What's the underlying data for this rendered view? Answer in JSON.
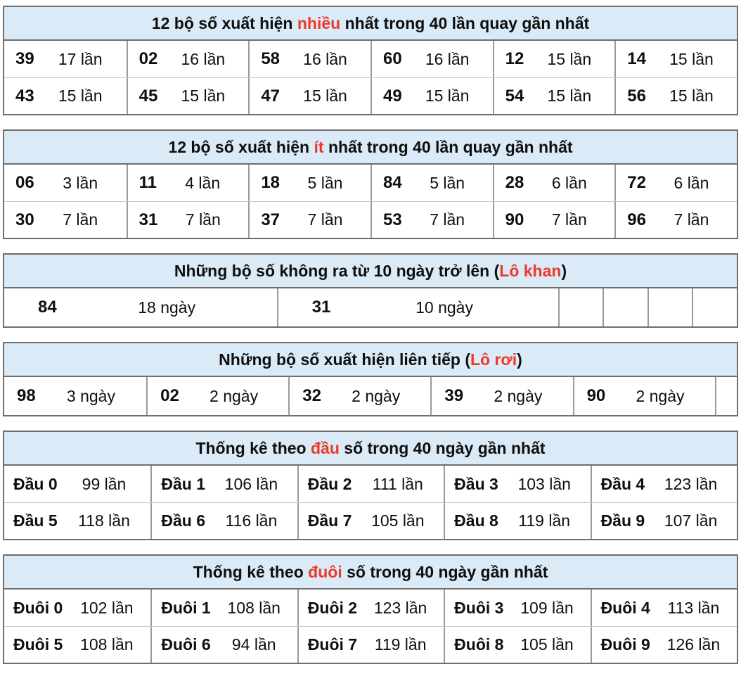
{
  "colors": {
    "header_background": "#daeaf6",
    "highlight_red": "#ee392b",
    "text_black": "#0f0f0f",
    "border_outer": "#6e6e6e",
    "border_column": "#999999",
    "border_row": "#c8c8c8"
  },
  "chart_data": [
    {
      "type": "table",
      "name": "most-frequent",
      "layout": "pairs6",
      "title": {
        "pre": "12 bộ số xuất hiện ",
        "highlight": "nhiều",
        "post": " nhất trong 40 lần quay gần nhất"
      },
      "rows": [
        [
          [
            "39",
            "17 lần"
          ],
          [
            "02",
            "16 lần"
          ],
          [
            "58",
            "16 lần"
          ],
          [
            "60",
            "16 lần"
          ],
          [
            "12",
            "15 lần"
          ],
          [
            "14",
            "15 lần"
          ]
        ],
        [
          [
            "43",
            "15 lần"
          ],
          [
            "45",
            "15 lần"
          ],
          [
            "47",
            "15 lần"
          ],
          [
            "49",
            "15 lần"
          ],
          [
            "54",
            "15 lần"
          ],
          [
            "56",
            "15 lần"
          ]
        ]
      ]
    },
    {
      "type": "table",
      "name": "least-frequent",
      "layout": "pairs6",
      "title": {
        "pre": "12 bộ số xuất hiện ",
        "highlight": "ít",
        "post": " nhất trong 40 lần quay gần nhất"
      },
      "rows": [
        [
          [
            "06",
            "3 lần"
          ],
          [
            "11",
            "4 lần"
          ],
          [
            "18",
            "5 lần"
          ],
          [
            "84",
            "5 lần"
          ],
          [
            "28",
            "6 lần"
          ],
          [
            "72",
            "6 lần"
          ]
        ],
        [
          [
            "30",
            "7 lần"
          ],
          [
            "31",
            "7 lần"
          ],
          [
            "37",
            "7 lần"
          ],
          [
            "53",
            "7 lần"
          ],
          [
            "90",
            "7 lần"
          ],
          [
            "96",
            "7 lần"
          ]
        ]
      ]
    },
    {
      "type": "table",
      "name": "lo-khan",
      "layout": "khan",
      "title": {
        "pre": "Những bộ số không ra từ 10 ngày trở lên (",
        "highlight": "Lô khan",
        "post": ")"
      },
      "rows": [
        [
          [
            "84",
            "18 ngày"
          ],
          [
            "31",
            "10 ngày"
          ],
          [
            "",
            ""
          ],
          [
            "",
            ""
          ],
          [
            "",
            ""
          ],
          [
            "",
            ""
          ]
        ]
      ]
    },
    {
      "type": "table",
      "name": "lo-roi",
      "layout": "roi",
      "title": {
        "pre": "Những bộ số xuất hiện liên tiếp (",
        "highlight": "Lô rơi",
        "post": ")"
      },
      "rows": [
        [
          [
            "98",
            "3 ngày"
          ],
          [
            "02",
            "2 ngày"
          ],
          [
            "32",
            "2 ngày"
          ],
          [
            "39",
            "2 ngày"
          ],
          [
            "90",
            "2 ngày"
          ],
          [
            "",
            ""
          ]
        ]
      ]
    },
    {
      "type": "table",
      "name": "dau-stats",
      "layout": "heads",
      "title": {
        "pre": "Thống kê theo ",
        "highlight": "đầu",
        "post": " số trong 40 ngày gần nhất"
      },
      "rows": [
        [
          [
            "Đầu 0",
            "99 lần"
          ],
          [
            "Đầu 1",
            "106 lần"
          ],
          [
            "Đầu 2",
            "111 lần"
          ],
          [
            "Đầu 3",
            "103 lần"
          ],
          [
            "Đầu 4",
            "123 lần"
          ]
        ],
        [
          [
            "Đầu 5",
            "118 lần"
          ],
          [
            "Đầu 6",
            "116 lần"
          ],
          [
            "Đầu 7",
            "105 lần"
          ],
          [
            "Đầu 8",
            "119 lần"
          ],
          [
            "Đầu 9",
            "107 lần"
          ]
        ]
      ]
    },
    {
      "type": "table",
      "name": "duoi-stats",
      "layout": "heads",
      "title": {
        "pre": "Thống kê theo ",
        "highlight": "đuôi",
        "post": " số trong 40 ngày gần nhất"
      },
      "rows": [
        [
          [
            "Đuôi 0",
            "102 lần"
          ],
          [
            "Đuôi 1",
            "108 lần"
          ],
          [
            "Đuôi 2",
            "123 lần"
          ],
          [
            "Đuôi 3",
            "109 lần"
          ],
          [
            "Đuôi 4",
            "113 lần"
          ]
        ],
        [
          [
            "Đuôi 5",
            "108 lần"
          ],
          [
            "Đuôi 6",
            "94 lần"
          ],
          [
            "Đuôi 7",
            "119 lần"
          ],
          [
            "Đuôi 8",
            "105 lần"
          ],
          [
            "Đuôi 9",
            "126 lần"
          ]
        ]
      ]
    }
  ]
}
